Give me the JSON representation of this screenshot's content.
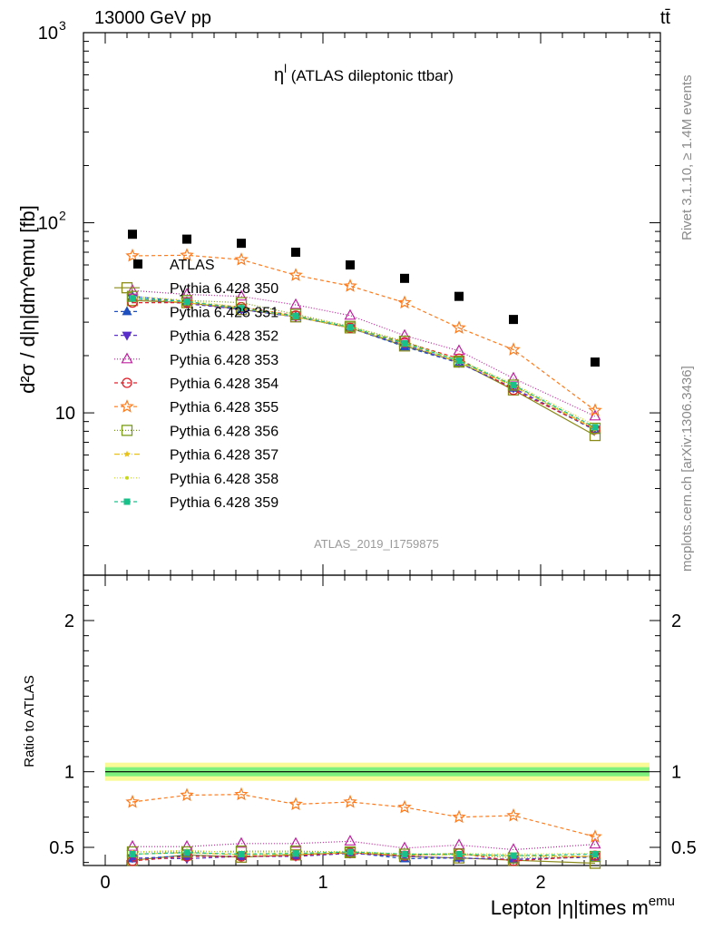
{
  "header": {
    "energy_label": "13000 GeV pp",
    "process_label": "tt̄"
  },
  "side_text": {
    "rivet": "Rivet 3.1.10, ≥ 1.4M events",
    "mcplots": "mcplots.cern.ch [arXiv:1306.3436]"
  },
  "watermark": "ATLAS_2019_I1759875",
  "chart_data": [
    {
      "type": "scatter",
      "panel": "main",
      "title_main": "η",
      "title_sup": "l",
      "title_rest": " (ATLAS dileptonic ttbar)",
      "ylabel": "d²σ / d|η|dm^emu [fb]",
      "yscale": "log",
      "ylim": [
        1.4,
        1000
      ],
      "xlim": [
        -0.1,
        2.55
      ],
      "x": [
        0.125,
        0.375,
        0.625,
        0.875,
        1.125,
        1.375,
        1.625,
        1.875,
        2.25
      ],
      "yticks": [
        {
          "value": 10,
          "label": "10"
        },
        {
          "value": 100,
          "label": "10",
          "sup": "2"
        },
        {
          "value": 1000,
          "label": "10",
          "sup": "3"
        }
      ],
      "legend_position": "upper-left",
      "series": [
        {
          "name": "ATLAS",
          "color": "#000000",
          "marker": "square-filled",
          "dash": "none",
          "values": [
            87,
            82,
            78,
            70,
            60,
            51,
            41,
            31,
            18.5
          ]
        },
        {
          "name": "Pythia 6.428 350",
          "color": "#8a8a1a",
          "marker": "square-open",
          "dash": "solid",
          "values": [
            39,
            38,
            35,
            32,
            28,
            22.5,
            18.5,
            13.2,
            7.6
          ]
        },
        {
          "name": "Pythia 6.428 351",
          "color": "#1f4fbf",
          "marker": "triangle-up-filled",
          "dash": "4,3",
          "values": [
            41,
            38.5,
            35,
            32,
            28,
            22.3,
            18.3,
            13.5,
            8.1
          ]
        },
        {
          "name": "Pythia 6.428 352",
          "color": "#5a2fc9",
          "marker": "triangle-down-filled",
          "dash": "4,3",
          "values": [
            40,
            37.5,
            35,
            32,
            28,
            22.8,
            18.4,
            13.5,
            8.2
          ]
        },
        {
          "name": "Pythia 6.428 353",
          "color": "#c020a0",
          "marker": "triangle-up-open",
          "dash": "1,2",
          "values": [
            44,
            42,
            41,
            37,
            32.5,
            25.5,
            21.2,
            15.2,
            9.6
          ]
        },
        {
          "name": "Pythia 6.428 354",
          "color": "#e0202a",
          "marker": "circle-open",
          "dash": "4,3",
          "values": [
            38,
            38,
            36,
            32.5,
            28,
            23.5,
            19.3,
            13.2,
            8.2
          ]
        },
        {
          "name": "Pythia 6.428 355",
          "color": "#ff7a1a",
          "marker": "star-open",
          "dash": "4,3",
          "values": [
            67,
            67.5,
            64,
            53,
            46.5,
            38,
            28,
            21.5,
            10.3
          ]
        },
        {
          "name": "Pythia 6.428 356",
          "color": "#7a9a1a",
          "marker": "square-open",
          "dash": "1,2",
          "values": [
            41,
            39,
            38,
            33,
            28.5,
            23.8,
            18.7,
            14,
            8.3
          ]
        },
        {
          "name": "Pythia 6.428 357",
          "color": "#e8c21a",
          "marker": "star-small",
          "dash": "6,2,1,2",
          "values": [
            40,
            38,
            35.5,
            32,
            28,
            23,
            18.5,
            13.8,
            8.2
          ]
        },
        {
          "name": "Pythia 6.428 358",
          "color": "#c8d81a",
          "marker": "dot",
          "dash": "1,2",
          "values": [
            41,
            39,
            36,
            32.5,
            28.5,
            23.5,
            19,
            14.2,
            8.6
          ]
        },
        {
          "name": "Pythia 6.428 359",
          "color": "#1ac08a",
          "marker": "square-small",
          "dash": "4,3",
          "values": [
            40,
            38.5,
            35.5,
            32.3,
            28.2,
            23.2,
            18.8,
            14,
            8.4
          ]
        }
      ]
    },
    {
      "type": "line",
      "panel": "ratio",
      "ylabel": "Ratio to ATLAS",
      "xlabel": "Lepton |η|times m^emu",
      "xlabel_main": "Lepton |η|times m",
      "xlabel_sup": "emu",
      "ylim": [
        0.38,
        2.3
      ],
      "xlim": [
        -0.1,
        2.55
      ],
      "x": [
        0.125,
        0.375,
        0.625,
        0.875,
        1.125,
        1.375,
        1.625,
        1.875,
        2.25
      ],
      "xticks": [
        0,
        1,
        2
      ],
      "yticks": [
        0.5,
        1,
        2
      ],
      "band": {
        "inner": 0.03,
        "outer": 0.06,
        "inner_color": "#7ef07e",
        "outer_color": "#fafa96"
      },
      "series": [
        {
          "name": "Pythia 6.428 350",
          "values": [
            0.415,
            0.45,
            0.435,
            0.45,
            0.465,
            0.44,
            0.43,
            0.415,
            0.395
          ]
        },
        {
          "name": "Pythia 6.428 351",
          "values": [
            0.425,
            0.445,
            0.44,
            0.445,
            0.465,
            0.425,
            0.43,
            0.42,
            0.435
          ]
        },
        {
          "name": "Pythia 6.428 352",
          "values": [
            0.43,
            0.425,
            0.44,
            0.44,
            0.46,
            0.44,
            0.43,
            0.42,
            0.44
          ]
        },
        {
          "name": "Pythia 6.428 353",
          "values": [
            0.505,
            0.505,
            0.525,
            0.525,
            0.54,
            0.495,
            0.515,
            0.485,
            0.52
          ]
        },
        {
          "name": "Pythia 6.428 354",
          "values": [
            0.41,
            0.44,
            0.44,
            0.445,
            0.465,
            0.445,
            0.46,
            0.41,
            0.445
          ]
        },
        {
          "name": "Pythia 6.428 355",
          "values": [
            0.8,
            0.845,
            0.85,
            0.785,
            0.8,
            0.765,
            0.7,
            0.71,
            0.57
          ]
        },
        {
          "name": "Pythia 6.428 356",
          "values": [
            0.47,
            0.47,
            0.475,
            0.475,
            0.47,
            0.455,
            0.455,
            0.43,
            0.44
          ]
        },
        {
          "name": "Pythia 6.428 357",
          "values": [
            0.455,
            0.465,
            0.45,
            0.455,
            0.465,
            0.45,
            0.45,
            0.445,
            0.44
          ]
        },
        {
          "name": "Pythia 6.428 358",
          "values": [
            0.47,
            0.48,
            0.465,
            0.465,
            0.475,
            0.455,
            0.46,
            0.455,
            0.46
          ]
        },
        {
          "name": "Pythia 6.428 359",
          "values": [
            0.455,
            0.465,
            0.455,
            0.46,
            0.47,
            0.455,
            0.455,
            0.445,
            0.455
          ]
        }
      ]
    }
  ]
}
